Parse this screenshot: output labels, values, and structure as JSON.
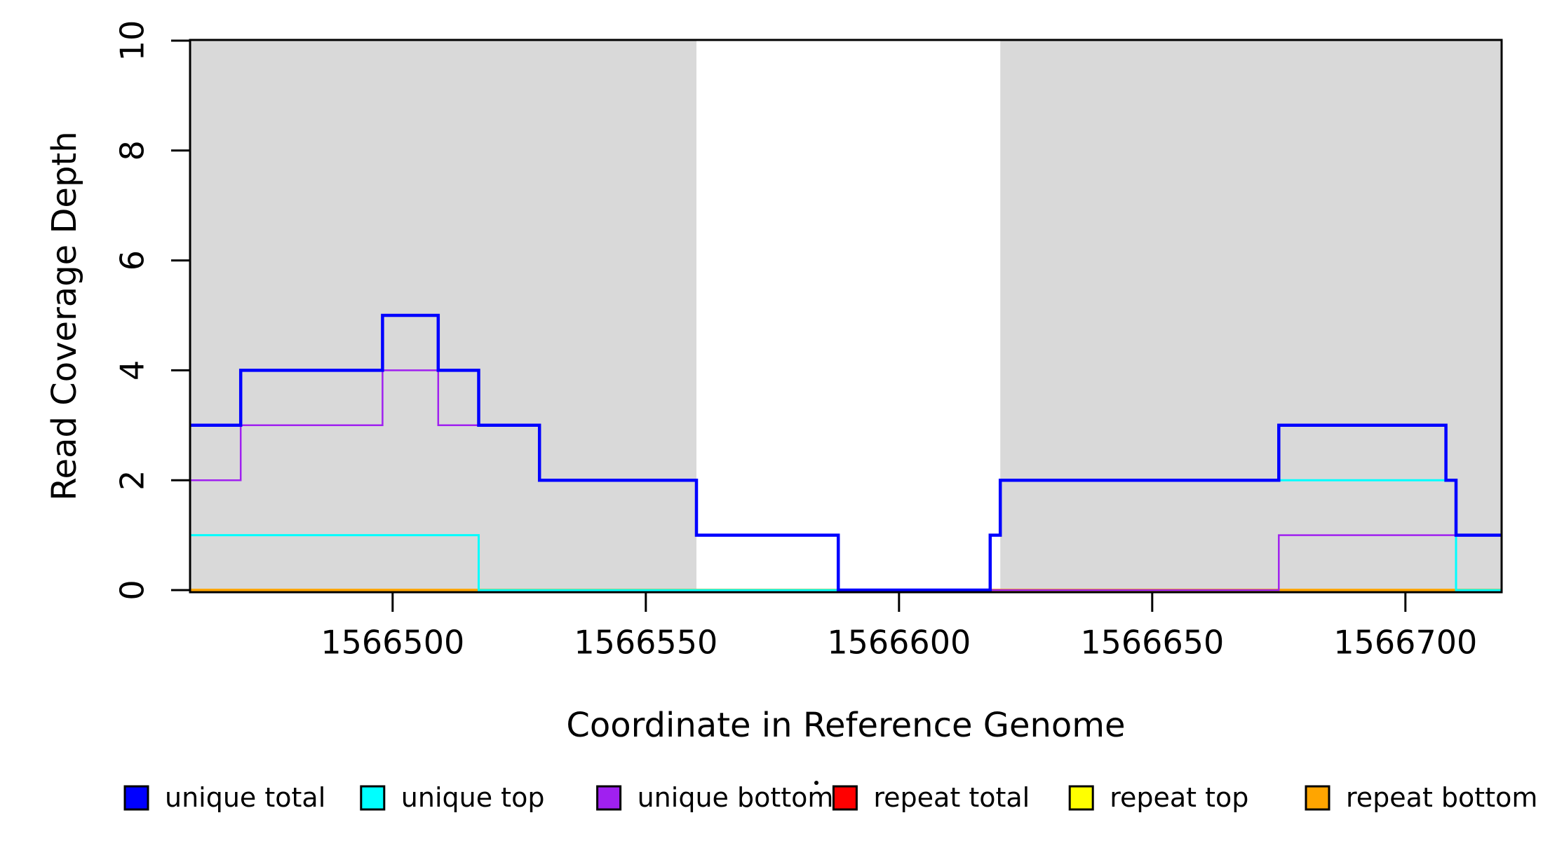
{
  "chart_data": {
    "type": "line",
    "subtype": "step-post",
    "title": "",
    "xlabel": "Coordinate in Reference Genome",
    "ylabel": "Read Coverage Depth",
    "x_range": [
      1566460,
      1566719
    ],
    "ylim": [
      0,
      10
    ],
    "x_ticks": [
      "1566500",
      "1566550",
      "1566600",
      "1566650",
      "1566700"
    ],
    "x_tick_values": [
      1566500,
      1566550,
      1566600,
      1566650,
      1566700
    ],
    "y_ticks": [
      "0",
      "2",
      "4",
      "6",
      "8",
      "10"
    ],
    "y_tick_values": [
      0,
      2,
      4,
      6,
      8,
      10
    ],
    "grid": false,
    "legend_position": "bottom",
    "background_color": "#FFFFFF",
    "shaded_band_color": "#D9D9D9",
    "shaded_regions": [
      {
        "start": 1566460,
        "end": 1566560
      },
      {
        "start": 1566620,
        "end": 1566719
      }
    ],
    "series_end_x": 1566719,
    "paint_order": [
      "repeat total",
      "repeat top",
      "repeat bottom",
      "unique bottom",
      "unique top",
      "unique total"
    ],
    "series": [
      {
        "name": "unique total",
        "color": "#0000FF",
        "line_width": 4.5,
        "steps": [
          [
            1566460,
            3
          ],
          [
            1566470,
            4
          ],
          [
            1566498,
            5
          ],
          [
            1566509,
            4
          ],
          [
            1566517,
            3
          ],
          [
            1566529,
            2
          ],
          [
            1566560,
            1
          ],
          [
            1566588,
            0
          ],
          [
            1566618,
            1
          ],
          [
            1566620,
            2
          ],
          [
            1566675,
            3
          ],
          [
            1566708,
            2
          ],
          [
            1566710,
            1
          ]
        ]
      },
      {
        "name": "unique top",
        "color": "#00FFFF",
        "line_width": 3,
        "steps": [
          [
            1566460,
            1
          ],
          [
            1566517,
            0
          ],
          [
            1566618,
            1
          ],
          [
            1566620,
            2
          ],
          [
            1566710,
            0
          ]
        ]
      },
      {
        "name": "unique bottom",
        "color": "#A020F0",
        "line_width": 2.5,
        "steps": [
          [
            1566460,
            2
          ],
          [
            1566470,
            3
          ],
          [
            1566498,
            4
          ],
          [
            1566509,
            3
          ],
          [
            1566529,
            2
          ],
          [
            1566560,
            1
          ],
          [
            1566588,
            0
          ],
          [
            1566675,
            1
          ]
        ]
      },
      {
        "name": "repeat total",
        "color": "#FF0000",
        "line_width": 3,
        "steps": [
          [
            1566460,
            0
          ]
        ]
      },
      {
        "name": "repeat top",
        "color": "#FFFF00",
        "line_width": 3,
        "steps": [
          [
            1566460,
            0
          ]
        ]
      },
      {
        "name": "repeat bottom",
        "color": "#FFA500",
        "line_width": 4,
        "steps": [
          [
            1566460,
            0
          ]
        ]
      }
    ]
  },
  "legend": {
    "entries": [
      {
        "label": "unique total",
        "color": "#0000FF"
      },
      {
        "label": "unique top",
        "color": "#00FFFF"
      },
      {
        "label": "unique bottom",
        "color": "#A020F0"
      },
      {
        "label": "repeat total",
        "color": "#FF0000"
      },
      {
        "label": "repeat top",
        "color": "#FFFF00"
      },
      {
        "label": "repeat bottom",
        "color": "#FFA500"
      }
    ]
  },
  "annotations": {
    "stray_dot": true
  }
}
